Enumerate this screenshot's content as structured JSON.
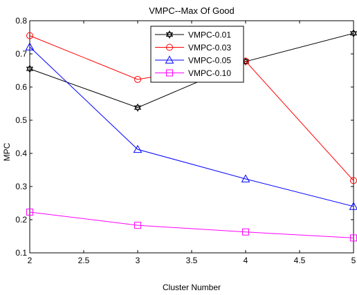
{
  "chart_data": {
    "type": "line",
    "title": "VMPC--Max Of Good",
    "xlabel": "Cluster Number",
    "ylabel": "MPC",
    "xlim": [
      2,
      5
    ],
    "ylim": [
      0.1,
      0.8
    ],
    "x": [
      2,
      3,
      4,
      5
    ],
    "x_ticks": [
      "2",
      "2.5",
      "3",
      "3.5",
      "4",
      "4.5",
      "5"
    ],
    "y_ticks": [
      "0.1",
      "0.2",
      "0.3",
      "0.4",
      "0.5",
      "0.6",
      "0.7",
      "0.8"
    ],
    "grid": false,
    "legend_position": "top-center",
    "series": [
      {
        "name": "VMPC-0.01",
        "values": [
          0.655,
          0.538,
          0.677,
          0.762
        ],
        "color": "#000000",
        "marker": "hexagram"
      },
      {
        "name": "VMPC-0.03",
        "values": [
          0.755,
          0.623,
          0.678,
          0.318
        ],
        "color": "#ff0000",
        "marker": "circle"
      },
      {
        "name": "VMPC-0.05",
        "values": [
          0.721,
          0.412,
          0.323,
          0.24
        ],
        "color": "#0000ff",
        "marker": "triangle"
      },
      {
        "name": "VMPC-0.10",
        "values": [
          0.223,
          0.183,
          0.163,
          0.145
        ],
        "color": "#ff00ff",
        "marker": "square"
      }
    ]
  }
}
